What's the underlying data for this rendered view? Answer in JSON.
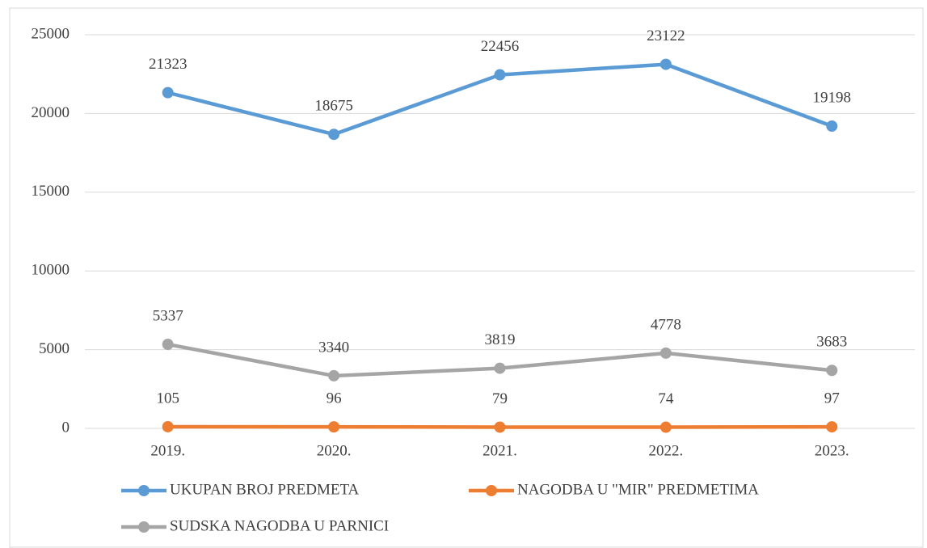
{
  "chart_data": {
    "type": "line",
    "categories": [
      "2019.",
      "2020.",
      "2021.",
      "2022.",
      "2023."
    ],
    "series": [
      {
        "name": "UKUPAN BROJ PREDMETA",
        "color": "#5b9bd5",
        "values": [
          21323,
          18675,
          22456,
          23122,
          19198
        ]
      },
      {
        "name": "NAGODBA U \"MIR\" PREDMETIMA",
        "color": "#ed7d31",
        "values": [
          105,
          96,
          79,
          74,
          97
        ]
      },
      {
        "name": "SUDSKA NAGODBA U PARNICI",
        "color": "#a5a5a5",
        "values": [
          5337,
          3340,
          3819,
          4778,
          3683
        ]
      }
    ],
    "ylim": [
      0,
      25000
    ],
    "yticks": [
      0,
      5000,
      10000,
      15000,
      20000,
      25000
    ],
    "grid": true,
    "legend": "bottom"
  }
}
